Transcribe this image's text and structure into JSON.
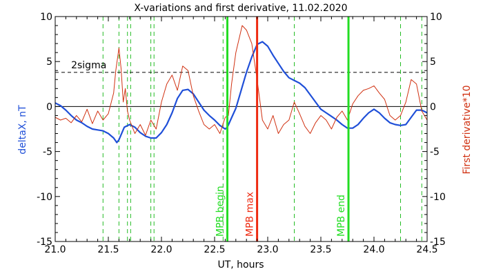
{
  "chart_data": {
    "type": "line",
    "title": "X-variations and first derivative, 11.02.2020",
    "xlabel": "UT, hours",
    "ylabel_left": "deltaX, nT",
    "ylabel_right": "First derivative*10",
    "xlim": [
      21.0,
      24.5
    ],
    "ylim": [
      -15,
      10
    ],
    "x_ticks": [
      "21.0",
      "21.5",
      "22.0",
      "22.5",
      "23.0",
      "23.5",
      "24.0",
      "24.5"
    ],
    "y_ticks_left": [
      "10",
      "5",
      "0",
      "-5",
      "-10",
      "-15"
    ],
    "y_ticks_right": [
      "10",
      "5",
      "0",
      "-5",
      "-10",
      "-15"
    ],
    "sigma_level": 3.8,
    "sigma_label": "2sigma",
    "colors": {
      "deltaX": "#1f4fd8",
      "derivative": "#d03010",
      "mpb_edges": "#22dd22",
      "mpb_max": "#ee2a10",
      "minor_markers": "#22bb22",
      "axes": "#000000"
    },
    "series": [
      {
        "key": "deltaX",
        "x": [
          21.0,
          21.05,
          21.1,
          21.15,
          21.2,
          21.25,
          21.3,
          21.35,
          21.4,
          21.45,
          21.5,
          21.55,
          21.58,
          21.6,
          21.65,
          21.7,
          21.75,
          21.8,
          21.85,
          21.9,
          21.95,
          22.0,
          22.05,
          22.1,
          22.15,
          22.2,
          22.25,
          22.3,
          22.35,
          22.4,
          22.45,
          22.5,
          22.55,
          22.6,
          22.62,
          22.65,
          22.7,
          22.75,
          22.8,
          22.85,
          22.9,
          22.95,
          23.0,
          23.05,
          23.1,
          23.15,
          23.2,
          23.25,
          23.3,
          23.35,
          23.4,
          23.45,
          23.5,
          23.55,
          23.6,
          23.65,
          23.7,
          23.75,
          23.8,
          23.85,
          23.9,
          23.95,
          24.0,
          24.05,
          24.1,
          24.15,
          24.2,
          24.25,
          24.3,
          24.35,
          24.4,
          24.45,
          24.5
        ],
        "y": [
          0.4,
          0.1,
          -0.4,
          -1.0,
          -1.5,
          -1.8,
          -2.2,
          -2.5,
          -2.6,
          -2.7,
          -3.0,
          -3.5,
          -4.0,
          -3.7,
          -2.3,
          -2.0,
          -2.3,
          -2.9,
          -3.3,
          -3.5,
          -3.5,
          -2.9,
          -2.0,
          -0.7,
          0.9,
          1.8,
          1.9,
          1.4,
          0.5,
          -0.4,
          -1.0,
          -1.5,
          -2.1,
          -2.5,
          -2.3,
          -1.5,
          -0.2,
          1.8,
          3.8,
          5.5,
          6.9,
          7.2,
          6.7,
          5.7,
          4.8,
          3.9,
          3.2,
          2.9,
          2.6,
          2.1,
          1.3,
          0.5,
          -0.3,
          -0.7,
          -1.1,
          -1.5,
          -2.0,
          -2.4,
          -2.4,
          -2.0,
          -1.3,
          -0.7,
          -0.3,
          -0.7,
          -1.3,
          -1.8,
          -2.0,
          -2.1,
          -2.0,
          -1.2,
          -0.4,
          -0.4,
          -0.7
        ]
      },
      {
        "key": "derivative",
        "x": [
          21.0,
          21.05,
          21.1,
          21.15,
          21.2,
          21.25,
          21.3,
          21.35,
          21.4,
          21.45,
          21.5,
          21.55,
          21.57,
          21.6,
          21.62,
          21.64,
          21.66,
          21.68,
          21.7,
          21.75,
          21.8,
          21.85,
          21.9,
          21.95,
          22.0,
          22.05,
          22.1,
          22.15,
          22.2,
          22.25,
          22.3,
          22.35,
          22.4,
          22.45,
          22.5,
          22.55,
          22.6,
          22.63,
          22.66,
          22.7,
          22.73,
          22.76,
          22.8,
          22.85,
          22.9,
          22.95,
          23.0,
          23.05,
          23.1,
          23.15,
          23.2,
          23.25,
          23.3,
          23.35,
          23.4,
          23.45,
          23.5,
          23.55,
          23.6,
          23.65,
          23.7,
          23.75,
          23.8,
          23.85,
          23.9,
          23.95,
          24.0,
          24.05,
          24.1,
          24.15,
          24.2,
          24.25,
          24.3,
          24.35,
          24.4,
          24.45,
          24.5
        ],
        "y": [
          -1.2,
          -1.5,
          -1.3,
          -1.8,
          -1.0,
          -1.7,
          -0.3,
          -1.9,
          -0.5,
          -1.5,
          -0.8,
          1.5,
          4.0,
          6.5,
          4.2,
          0.5,
          2.0,
          -0.5,
          -1.5,
          -3.0,
          -2.0,
          -3.2,
          -1.5,
          -2.5,
          0.5,
          2.5,
          3.5,
          1.8,
          4.5,
          4.0,
          1.2,
          -0.5,
          -2.0,
          -2.5,
          -2.0,
          -3.0,
          -1.2,
          -1.0,
          2.5,
          6.0,
          7.5,
          9.0,
          8.5,
          7.0,
          3.0,
          -1.5,
          -2.5,
          -1.0,
          -3.0,
          -2.0,
          -1.5,
          0.5,
          -0.8,
          -2.2,
          -3.0,
          -1.8,
          -1.0,
          -1.5,
          -2.5,
          -1.2,
          -0.5,
          -1.5,
          0.3,
          1.2,
          1.8,
          2.0,
          2.3,
          1.5,
          0.8,
          -1.0,
          -1.5,
          -1.0,
          0.5,
          3.0,
          2.5,
          -0.5,
          -1.5
        ]
      }
    ],
    "dashed_markers_x": [
      21.45,
      21.6,
      21.68,
      21.71,
      21.9,
      21.93,
      22.58,
      23.25,
      24.25,
      24.45
    ],
    "events": [
      {
        "x": 22.62,
        "label": "MPB begin",
        "kind": "edge"
      },
      {
        "x": 22.9,
        "label": "MPB max",
        "kind": "max"
      },
      {
        "x": 23.76,
        "label": "MPB end",
        "kind": "edge"
      }
    ]
  }
}
